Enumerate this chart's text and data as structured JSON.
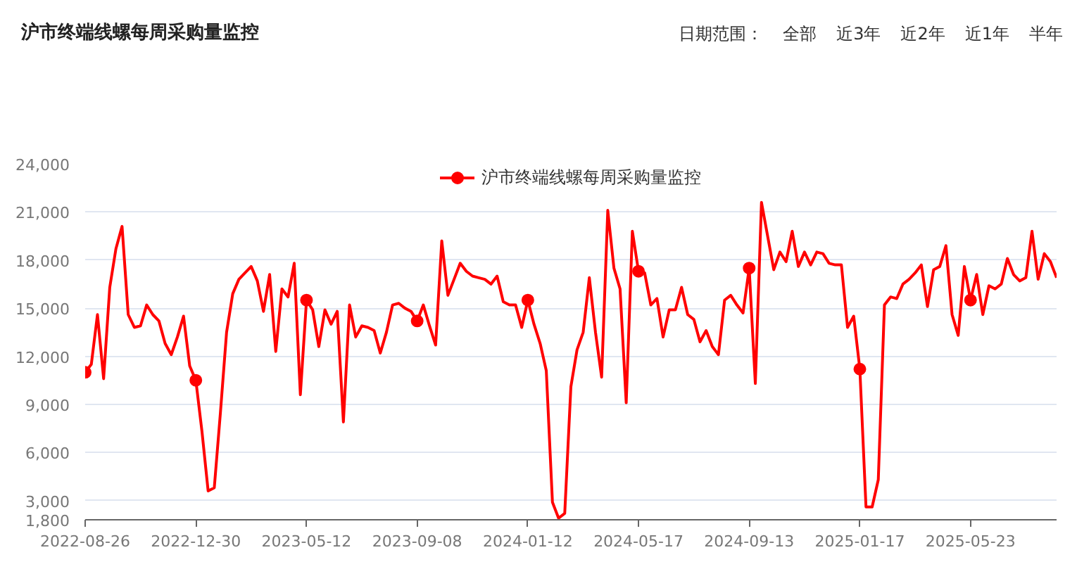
{
  "chart_data": {
    "type": "line",
    "title": "沪市终端线螺每周采购量监控",
    "annotations": [
      "日期范围：",
      "全部",
      "近3年",
      "近2年",
      "近1年",
      "半年"
    ],
    "categories": [
      "2022-08-26",
      null,
      null,
      null,
      null,
      null,
      null,
      null,
      null,
      null,
      null,
      null,
      null,
      null,
      null,
      null,
      null,
      null,
      "2022-12-30",
      null,
      null,
      null,
      null,
      null,
      null,
      null,
      null,
      null,
      null,
      null,
      null,
      null,
      null,
      null,
      null,
      null,
      "2023-05-12",
      null,
      null,
      null,
      null,
      null,
      null,
      null,
      null,
      null,
      null,
      null,
      null,
      null,
      null,
      null,
      null,
      null,
      "2023-09-08",
      null,
      null,
      null,
      null,
      null,
      null,
      null,
      null,
      null,
      null,
      null,
      null,
      null,
      null,
      null,
      null,
      null,
      "2024-01-12",
      null,
      null,
      null,
      null,
      null,
      null,
      null,
      null,
      null,
      null,
      null,
      null,
      null,
      null,
      null,
      null,
      null,
      "2024-05-17",
      null,
      null,
      null,
      null,
      null,
      null,
      null,
      null,
      null,
      null,
      null,
      null,
      null,
      null,
      null,
      null,
      null,
      "2024-09-13",
      null,
      null,
      null,
      null,
      null,
      null,
      null,
      null,
      null,
      null,
      null,
      null,
      null,
      null,
      null,
      null,
      null,
      "2025-01-17",
      null,
      null,
      null,
      null,
      null,
      null,
      null,
      null,
      null,
      null,
      null,
      null,
      null,
      null,
      null,
      null,
      null,
      "2025-05-23",
      null,
      null,
      null,
      null,
      null,
      null,
      null,
      null,
      null,
      null,
      null,
      null,
      null,
      null
    ],
    "series": [
      {
        "name": "沪市终端线螺每周采购量监控",
        "color": "#ff0000",
        "values": [
          11000,
          11500,
          14600,
          10600,
          16300,
          18700,
          20100,
          14600,
          13800,
          13900,
          15200,
          14600,
          14200,
          12800,
          12100,
          13200,
          14500,
          11400,
          10500,
          7300,
          3600,
          3800,
          8500,
          13500,
          15900,
          16800,
          17200,
          17600,
          16700,
          14800,
          17100,
          12300,
          16200,
          15700,
          17800,
          9600,
          15500,
          14900,
          12600,
          14900,
          14000,
          14800,
          7900,
          15200,
          13200,
          13900,
          13800,
          13600,
          12200,
          13500,
          15200,
          15300,
          15000,
          14800,
          14200,
          15200,
          13900,
          12700,
          19200,
          15800,
          16800,
          17800,
          17300,
          17000,
          16900,
          16800,
          16500,
          17000,
          15400,
          15200,
          15200,
          13800,
          15500,
          14000,
          12800,
          11100,
          2900,
          1900,
          2200,
          10100,
          12400,
          13500,
          16900,
          13500,
          10700,
          21100,
          17500,
          16200,
          9100,
          19800,
          17300,
          17200,
          15200,
          15600,
          13200,
          14900,
          14900,
          16300,
          14600,
          14300,
          12900,
          13600,
          12600,
          12100,
          15500,
          15800,
          15200,
          14700,
          17500,
          10300,
          21600,
          19500,
          17400,
          18500,
          17900,
          19800,
          17600,
          18500,
          17700,
          18500,
          18400,
          17800,
          17700,
          17700,
          13800,
          14500,
          11200,
          2600,
          2600,
          4300,
          15200,
          15700,
          15600,
          16500,
          16800,
          17200,
          17700,
          15100,
          17400,
          17600,
          18900,
          14600,
          13300,
          17600,
          15500,
          17100,
          14600,
          16400,
          16200,
          16500,
          18100,
          17100,
          16700,
          16900,
          19800,
          16800,
          18400,
          17900,
          16900
        ]
      },
      {
        "type": "scatter",
        "color": "#ff0000",
        "values": [
          11000,
          null,
          null,
          null,
          null,
          null,
          null,
          null,
          null,
          null,
          null,
          null,
          null,
          null,
          null,
          null,
          null,
          null,
          10500,
          null,
          null,
          null,
          null,
          null,
          null,
          null,
          null,
          null,
          null,
          null,
          null,
          null,
          null,
          null,
          null,
          null,
          15500,
          null,
          null,
          null,
          null,
          null,
          null,
          null,
          null,
          null,
          null,
          null,
          null,
          null,
          null,
          null,
          null,
          null,
          14200,
          null,
          null,
          null,
          null,
          null,
          null,
          null,
          null,
          null,
          null,
          null,
          null,
          null,
          null,
          null,
          null,
          null,
          15500,
          null,
          null,
          null,
          null,
          null,
          null,
          null,
          null,
          null,
          null,
          null,
          null,
          null,
          null,
          null,
          null,
          null,
          17300,
          null,
          null,
          null,
          null,
          null,
          null,
          null,
          null,
          null,
          null,
          null,
          null,
          null,
          null,
          null,
          null,
          null,
          17500,
          null,
          null,
          null,
          null,
          null,
          null,
          null,
          null,
          null,
          null,
          null,
          null,
          null,
          null,
          null,
          null,
          null,
          11200,
          null,
          null,
          null,
          null,
          null,
          null,
          null,
          null,
          null,
          null,
          null,
          null,
          null,
          null,
          null,
          null,
          null,
          15500,
          null,
          null,
          null,
          null,
          null,
          null,
          null,
          null,
          null,
          null,
          null,
          null,
          null,
          null
        ]
      }
    ],
    "ylim": [
      1800,
      24000
    ],
    "yticks": [
      {
        "value": 1800,
        "label": "1,800"
      },
      {
        "value": 3000,
        "label": "3,000"
      },
      {
        "value": 6000,
        "label": "6,000"
      },
      {
        "value": 9000,
        "label": "9,000"
      },
      {
        "value": 12000,
        "label": "12,000"
      },
      {
        "value": 15000,
        "label": "15,000"
      },
      {
        "value": 18000,
        "label": "18,000"
      },
      {
        "value": 21000,
        "label": "21,000"
      },
      {
        "value": 24000,
        "label": "24,000"
      }
    ],
    "grid": "y",
    "legend": "top",
    "line_style": "solid"
  }
}
